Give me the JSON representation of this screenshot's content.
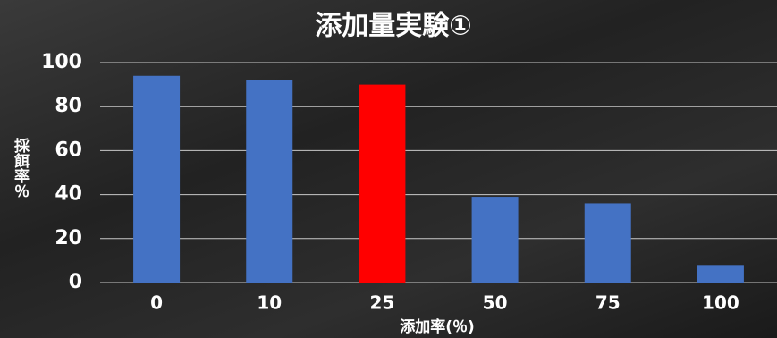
{
  "chart_data": {
    "type": "bar",
    "title": "添加量実験①",
    "x_label": "添加率(％)",
    "y_label": "採餌率％",
    "categories": [
      "0",
      "10",
      "25",
      "50",
      "75",
      "100"
    ],
    "values": [
      94,
      92,
      90,
      39,
      36,
      8
    ],
    "colors": [
      "#4472c4",
      "#4472c4",
      "#ff0000",
      "#4472c4",
      "#4472c4",
      "#4472c4"
    ],
    "ylim": [
      0,
      100
    ],
    "yticks": [
      0,
      20,
      40,
      60,
      80,
      100
    ],
    "grid": true
  }
}
